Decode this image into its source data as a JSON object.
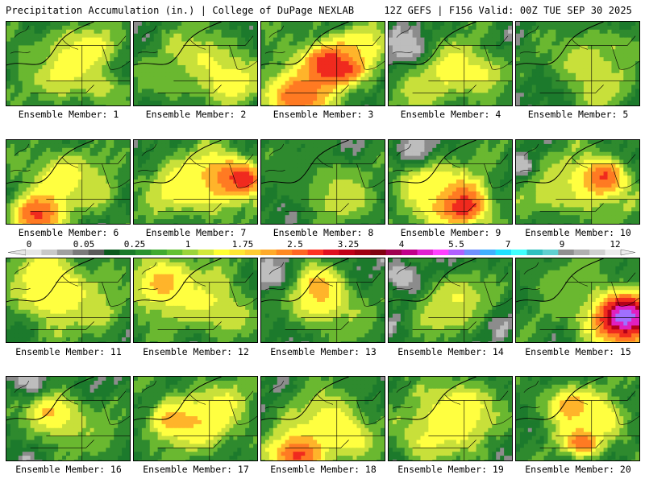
{
  "header": {
    "title": "Precipitation Accumulation (in.) | College of DuPage NEXLAB",
    "run_info": "12Z GEFS | F156 Valid: 00Z TUE SEP 30 2025"
  },
  "label_prefix": "Ensemble Member: ",
  "members": [
    {
      "label": "Ensemble Member: 1",
      "base": 0.55,
      "blobs": [
        [
          0.45,
          0.5,
          0.2,
          1.6
        ],
        [
          0.7,
          0.3,
          0.14,
          1.4
        ],
        [
          0.75,
          0.75,
          0.12,
          1.2
        ],
        [
          0.2,
          0.4,
          0.15,
          0.8
        ]
      ]
    },
    {
      "label": "Ensemble Member: 2",
      "base": 0.5,
      "blobs": [
        [
          0.55,
          0.45,
          0.22,
          1.3
        ],
        [
          0.8,
          0.7,
          0.15,
          1.5
        ],
        [
          0.3,
          0.7,
          0.15,
          0.9
        ]
      ]
    },
    {
      "label": "Ensemble Member: 3",
      "base": 0.6,
      "blobs": [
        [
          0.55,
          0.5,
          0.15,
          3.2
        ],
        [
          0.68,
          0.48,
          0.1,
          3.4
        ],
        [
          0.3,
          0.85,
          0.18,
          2.4
        ],
        [
          0.8,
          0.3,
          0.15,
          1.6
        ]
      ]
    },
    {
      "label": "Ensemble Member: 4",
      "base": 0.5,
      "blobs": [
        [
          0.5,
          0.55,
          0.2,
          1.5
        ],
        [
          0.75,
          0.6,
          0.15,
          1.3
        ],
        [
          0.25,
          0.8,
          0.15,
          1.2
        ],
        [
          0.15,
          0.3,
          0.14,
          0.0
        ]
      ]
    },
    {
      "label": "Ensemble Member: 5",
      "base": 0.45,
      "blobs": [
        [
          0.55,
          0.45,
          0.2,
          1.2
        ],
        [
          0.8,
          0.3,
          0.15,
          1.0
        ],
        [
          0.7,
          0.8,
          0.15,
          1.2
        ]
      ]
    },
    {
      "label": "Ensemble Member: 6",
      "base": 0.55,
      "blobs": [
        [
          0.45,
          0.45,
          0.2,
          1.5
        ],
        [
          0.25,
          0.85,
          0.14,
          2.6
        ],
        [
          0.7,
          0.6,
          0.15,
          1.2
        ]
      ]
    },
    {
      "label": "Ensemble Member: 7",
      "base": 0.55,
      "blobs": [
        [
          0.7,
          0.45,
          0.18,
          2.2
        ],
        [
          0.88,
          0.45,
          0.1,
          3.0
        ],
        [
          0.4,
          0.55,
          0.2,
          1.5
        ]
      ]
    },
    {
      "label": "Ensemble Member: 8",
      "base": 0.45,
      "blobs": [
        [
          0.55,
          0.5,
          0.2,
          1.0
        ],
        [
          0.7,
          0.7,
          0.15,
          1.2
        ],
        [
          0.3,
          0.4,
          0.15,
          0.7
        ]
      ]
    },
    {
      "label": "Ensemble Member: 9",
      "base": 0.55,
      "blobs": [
        [
          0.55,
          0.7,
          0.18,
          2.3
        ],
        [
          0.6,
          0.75,
          0.1,
          3.0
        ],
        [
          0.3,
          0.5,
          0.18,
          1.5
        ],
        [
          0.2,
          0.1,
          0.12,
          0.0
        ]
      ]
    },
    {
      "label": "Ensemble Member: 10",
      "base": 0.55,
      "blobs": [
        [
          0.6,
          0.5,
          0.2,
          1.6
        ],
        [
          0.72,
          0.42,
          0.1,
          2.6
        ],
        [
          0.3,
          0.6,
          0.15,
          1.2
        ],
        [
          0.05,
          0.3,
          0.08,
          0.0
        ]
      ]
    },
    {
      "label": "Ensemble Member: 11",
      "base": 0.55,
      "blobs": [
        [
          0.4,
          0.4,
          0.22,
          1.7
        ],
        [
          0.3,
          0.15,
          0.15,
          1.4
        ],
        [
          0.7,
          0.6,
          0.15,
          1.2
        ]
      ]
    },
    {
      "label": "Ensemble Member: 12",
      "base": 0.55,
      "blobs": [
        [
          0.25,
          0.3,
          0.2,
          1.8
        ],
        [
          0.6,
          0.5,
          0.2,
          1.3
        ],
        [
          0.8,
          0.7,
          0.12,
          1.2
        ]
      ]
    },
    {
      "label": "Ensemble Member: 13",
      "base": 0.45,
      "blobs": [
        [
          0.5,
          0.5,
          0.2,
          1.5
        ],
        [
          0.45,
          0.3,
          0.12,
          1.8
        ],
        [
          0.1,
          0.2,
          0.12,
          0.0
        ],
        [
          0.75,
          0.75,
          0.12,
          1.0
        ]
      ]
    },
    {
      "label": "Ensemble Member: 14",
      "base": 0.45,
      "blobs": [
        [
          0.55,
          0.45,
          0.18,
          1.3
        ],
        [
          0.4,
          0.65,
          0.15,
          1.2
        ],
        [
          0.1,
          0.2,
          0.12,
          0.0
        ]
      ]
    },
    {
      "label": "Ensemble Member: 15",
      "base": 0.5,
      "blobs": [
        [
          0.85,
          0.7,
          0.2,
          3.0
        ],
        [
          0.9,
          0.65,
          0.1,
          5.5
        ],
        [
          0.88,
          0.68,
          0.05,
          8.0
        ],
        [
          0.4,
          0.3,
          0.2,
          1.0
        ]
      ]
    },
    {
      "label": "Ensemble Member: 16",
      "base": 0.45,
      "blobs": [
        [
          0.45,
          0.5,
          0.2,
          1.3
        ],
        [
          0.35,
          0.4,
          0.1,
          1.7
        ],
        [
          0.7,
          0.65,
          0.15,
          1.0
        ],
        [
          0.2,
          0.05,
          0.1,
          0.0
        ]
      ]
    },
    {
      "label": "Ensemble Member: 17",
      "base": 0.55,
      "blobs": [
        [
          0.55,
          0.5,
          0.22,
          1.6
        ],
        [
          0.3,
          0.5,
          0.12,
          1.8
        ],
        [
          0.75,
          0.3,
          0.12,
          1.3
        ]
      ]
    },
    {
      "label": "Ensemble Member: 18",
      "base": 0.55,
      "blobs": [
        [
          0.55,
          0.5,
          0.2,
          1.4
        ],
        [
          0.3,
          0.9,
          0.15,
          2.6
        ],
        [
          0.7,
          0.7,
          0.12,
          1.6
        ]
      ]
    },
    {
      "label": "Ensemble Member: 19",
      "base": 0.55,
      "blobs": [
        [
          0.5,
          0.5,
          0.2,
          1.7
        ],
        [
          0.6,
          0.3,
          0.15,
          1.4
        ],
        [
          0.3,
          0.75,
          0.15,
          1.3
        ]
      ]
    },
    {
      "label": "Ensemble Member: 20",
      "base": 0.55,
      "blobs": [
        [
          0.45,
          0.35,
          0.15,
          1.9
        ],
        [
          0.55,
          0.75,
          0.1,
          2.6
        ],
        [
          0.7,
          0.5,
          0.15,
          1.5
        ]
      ]
    }
  ],
  "legend": {
    "ticks": [
      "0",
      "0.05",
      "0.25",
      "1",
      "1.75",
      "2.5",
      "3.25",
      "4",
      "5.5",
      "7",
      "9",
      "12"
    ],
    "colors": [
      "#e6e6e6",
      "#c8c8c8",
      "#a0a0a0",
      "#7a7a7a",
      "#5a5a5a",
      "#0a5a1e",
      "#1a7a2a",
      "#2a922f",
      "#3faa2f",
      "#63c032",
      "#9bd43a",
      "#d2e83a",
      "#ffff33",
      "#ffe633",
      "#ffcc33",
      "#ffaa2a",
      "#ff8822",
      "#ff6622",
      "#ff3322",
      "#e01020",
      "#c00018",
      "#a00012",
      "#800010",
      "#a00050",
      "#c0008a",
      "#e020d0",
      "#ff40ff",
      "#b060ff",
      "#7090ff",
      "#40b0ff",
      "#20e0ff",
      "#40ffff",
      "#30c0c0",
      "#60d0d0",
      "#909090",
      "#b0b0b0",
      "#d0d0d0",
      "#ececec"
    ]
  },
  "palette": {
    "gray_light": "#bdbdbd",
    "gray_mid": "#8c8c8c",
    "green_dark": "#1c7a2c",
    "green": "#2e8a2e",
    "green_light": "#6ab830",
    "yellow_green": "#c8e03a",
    "yellow": "#ffff40",
    "orange": "#ffb42a",
    "orange_red": "#ff7a22",
    "red": "#f02a1e",
    "dark_red": "#b4001a",
    "magenta": "#e020c0",
    "violet": "#a070ff",
    "border": "#000000"
  }
}
